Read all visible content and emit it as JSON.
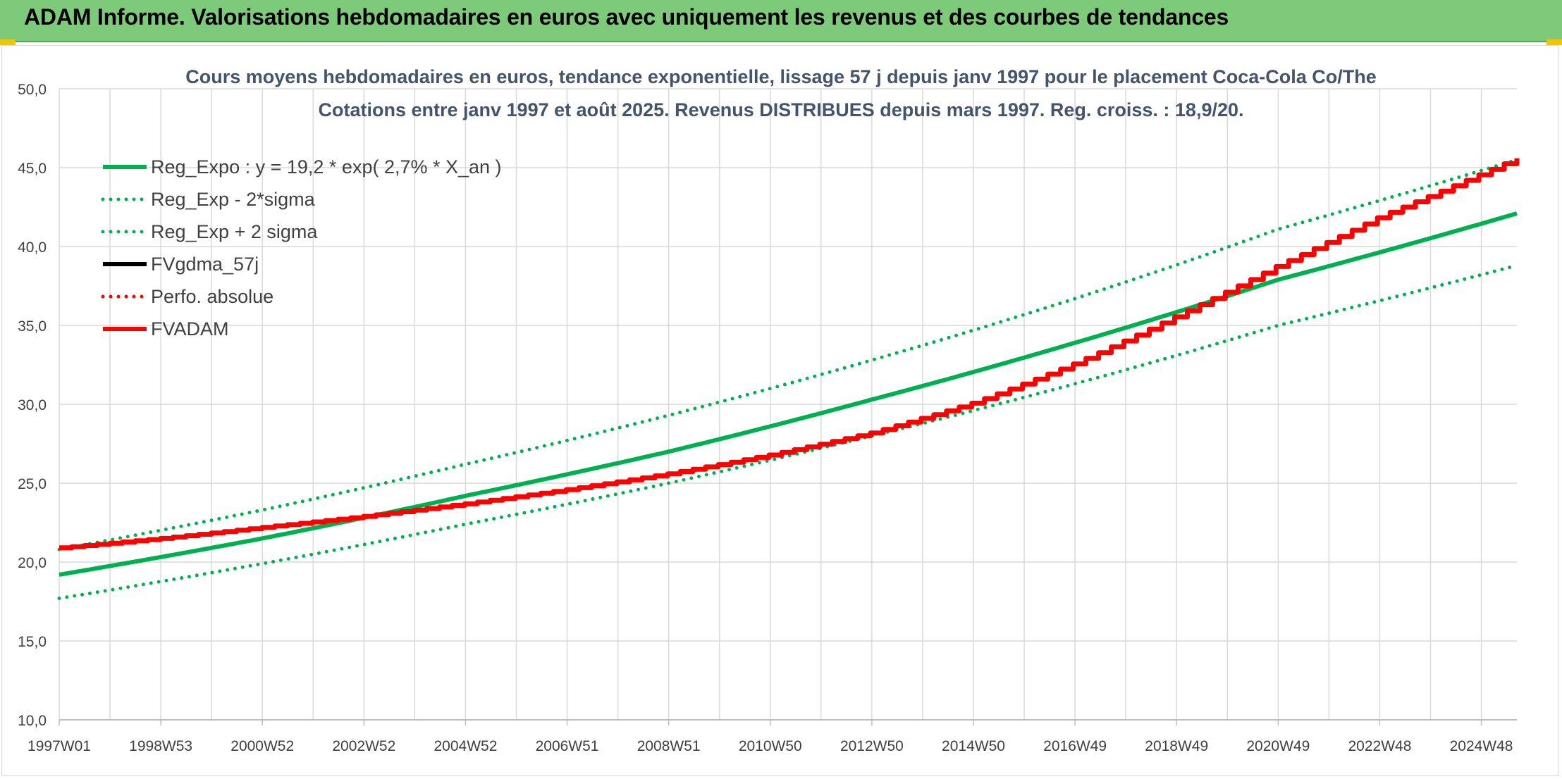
{
  "header": {
    "title": "ADAM Informe. Valorisations hebdomadaires en euros avec uniquement les revenus et des courbes de tendances"
  },
  "colors": {
    "header_bg": "#7dcb7a",
    "trend": "#00b050",
    "price": "#000000",
    "adam": "#ff0000",
    "grid": "#d9d9d9",
    "text": "#404040",
    "title_text": "#44546a"
  },
  "chart_data": {
    "type": "line",
    "title": "Cours moyens hebdomadaires en euros, tendance exponentielle, lissage 57 j depuis janv 1997 pour le placement Coca-Cola Co/The",
    "subtitle": "Cotations entre janv 1997 et août 2025. Revenus DISTRIBUES depuis mars 1997. Reg. croiss. : 18,9/20.",
    "xlabel": "",
    "ylabel": "",
    "ylim": [
      10,
      50
    ],
    "yticks": [
      "10,0",
      "15,0",
      "20,0",
      "25,0",
      "30,0",
      "35,0",
      "40,0",
      "45,0",
      "50,0"
    ],
    "xticks": [
      "1997W01",
      "1998W53",
      "2000W52",
      "2002W52",
      "2004W52",
      "2006W51",
      "2008W51",
      "2010W50",
      "2012W50",
      "2014W50",
      "2016W49",
      "2018W49",
      "2020W49",
      "2022W48",
      "2024W48"
    ],
    "x_range_years": [
      1997.0,
      2025.7
    ],
    "grid": true,
    "legend_position": "top-left",
    "legend": [
      {
        "name": "Reg_Expo : y = 19,2 * exp( 2,7% *  X_an )",
        "style": "solid",
        "color": "#00b050"
      },
      {
        "name": "Reg_Exp - 2*sigma",
        "style": "dotted",
        "color": "#00b050"
      },
      {
        "name": "Reg_Exp + 2 sigma",
        "style": "dotted",
        "color": "#00b050"
      },
      {
        "name": "FVgdma_57j",
        "style": "solid",
        "color": "#000000"
      },
      {
        "name": "Perfo. absolue",
        "style": "dotted",
        "color": "#ff0000"
      },
      {
        "name": "FVADAM",
        "style": "solid",
        "color": "#ff0000"
      }
    ],
    "series": [
      {
        "name": "Reg_Expo : y = 19,2 * exp( 2,7% *  X_an )",
        "x": [
          1997,
          2001,
          2005,
          2009,
          2013,
          2017,
          2021,
          2025.7
        ],
        "values": [
          19.2,
          21.5,
          24.2,
          27.0,
          30.3,
          33.9,
          37.9,
          42.1
        ]
      },
      {
        "name": "Reg_Exp - 2*sigma",
        "x": [
          1997,
          2001,
          2005,
          2009,
          2013,
          2017,
          2021,
          2025.7
        ],
        "values": [
          17.7,
          19.9,
          22.4,
          25.0,
          28.0,
          31.3,
          35.0,
          38.8
        ]
      },
      {
        "name": "Reg_Exp + 2 sigma",
        "x": [
          1997,
          2001,
          2005,
          2009,
          2013,
          2017,
          2021,
          2025.7
        ],
        "values": [
          20.8,
          23.3,
          26.2,
          29.3,
          32.8,
          36.7,
          41.1,
          45.5
        ]
      },
      {
        "name": "FVADAM",
        "x": [
          1997,
          1999,
          2001,
          2003,
          2005,
          2007,
          2009,
          2011,
          2013,
          2015,
          2017,
          2019,
          2021,
          2023,
          2025.7
        ],
        "values": [
          20.9,
          21.5,
          22.2,
          22.9,
          23.7,
          24.6,
          25.6,
          26.8,
          28.2,
          30.1,
          32.6,
          35.6,
          38.8,
          41.9,
          45.6
        ]
      }
    ]
  }
}
